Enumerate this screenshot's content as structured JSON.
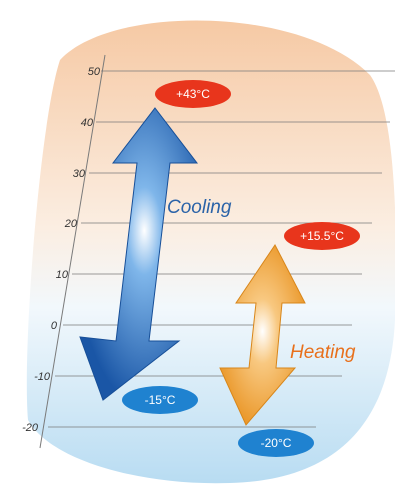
{
  "diagram": {
    "axis": {
      "ticks": [
        "50",
        "40",
        "30",
        "20",
        "10",
        "0",
        "-10",
        "-20"
      ]
    },
    "cooling": {
      "label": "Cooling",
      "max_label": "+43°C",
      "min_label": "-15°C",
      "max_value": 43,
      "min_value": -15
    },
    "heating": {
      "label": "Heating",
      "max_label": "+15.5°C",
      "min_label": "-20°C",
      "max_value": 15.5,
      "min_value": -20
    },
    "colors": {
      "cooling_arrow": "#1c5fb0",
      "heating_arrow": "#f0a030",
      "hot_badge": "#e8351c",
      "cold_badge": "#1f82d0",
      "cooling_text": "#2b63a8",
      "heating_text": "#e8701c",
      "background_top": "#f4cfae",
      "background_bottom": "#bfe0f4"
    }
  }
}
